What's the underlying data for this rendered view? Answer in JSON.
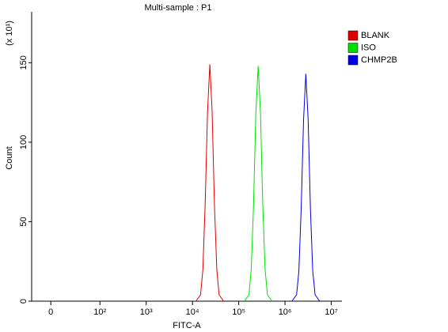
{
  "chart_data": {
    "type": "histogram-overlay",
    "title": "Multi-sample : P1",
    "x_label": "FITC-A",
    "y_label": "Count",
    "y_multiplier": "(x 10¹)",
    "xscale": "biexponential",
    "xlim": [
      -39,
      17000000
    ],
    "xticks": [
      0,
      {
        "value": 100,
        "label": "10²"
      },
      {
        "value": 1000,
        "label": "10³"
      },
      {
        "value": 10000,
        "label": "10⁴"
      },
      {
        "value": 100000,
        "label": "10⁵"
      },
      {
        "value": 1000000,
        "label": "10⁶"
      },
      {
        "value": 10000000,
        "label": "10⁷"
      }
    ],
    "ylim": [
      0,
      182
    ],
    "yticks": [
      0,
      50,
      100,
      150
    ],
    "legend": "top-right",
    "series": [
      {
        "name": "BLANK",
        "color": "#e00000",
        "x": [
          11885,
          14962,
          16788,
          18836,
          21135,
          23714,
          26607,
          29854,
          33497,
          37584,
          47315
        ],
        "values": [
          0,
          4,
          20,
          61,
          119,
          149,
          119,
          61,
          20,
          4,
          0
        ]
      },
      {
        "name": "ISO",
        "color": "#00e000",
        "x": [
          131826,
          165959,
          186209,
          208930,
          234423,
          263027,
          295121,
          331131,
          371535,
          416869,
          524807
        ],
        "values": [
          0,
          4,
          20,
          60,
          118,
          148,
          118,
          60,
          20,
          4,
          0
        ]
      },
      {
        "name": "CHMP2B",
        "color": "#0000e0",
        "x": [
          1412538,
          1778279,
          1995262,
          2238721,
          2511886,
          2818383,
          3162278,
          3548134,
          3981072,
          4466836,
          5623413
        ],
        "values": [
          0,
          4,
          19,
          58,
          114,
          143,
          114,
          58,
          19,
          4,
          0
        ]
      }
    ]
  }
}
